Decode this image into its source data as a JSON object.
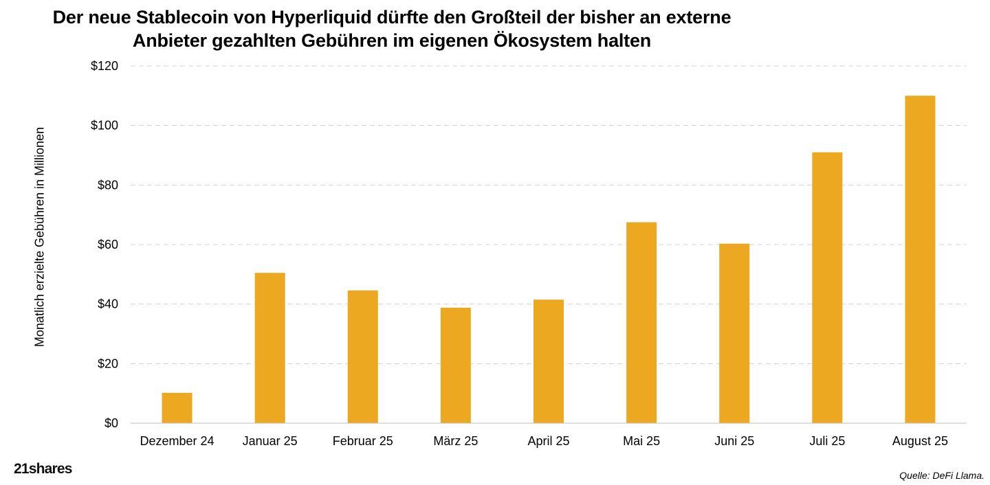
{
  "title": {
    "line1": "Der neue Stablecoin von Hyperliquid dürfte den Großteil der bisher an externe",
    "line2": "Anbieter gezahlten Gebühren im eigenen Ökosystem halten"
  },
  "brand": "21shares",
  "source": "Quelle: DeFi Llama.",
  "colors": {
    "bar": "#EDA821",
    "grid": "#d0d0d0",
    "axis": "#bfbfbf"
  },
  "chart_data": {
    "type": "bar",
    "title": "Der neue Stablecoin von Hyperliquid dürfte den Großteil der bisher an externe Anbieter gezahlten Gebühren im eigenen Ökosystem halten",
    "xlabel": "",
    "ylabel": "Monatlich erzielte Gebühren in Millionen",
    "categories": [
      "Dezember 24",
      "Januar 25",
      "Februar 25",
      "März 25",
      "April 25",
      "Mai 25",
      "Juni 25",
      "Juli 25",
      "August 25"
    ],
    "values": [
      10.2,
      50.5,
      44.6,
      38.8,
      41.5,
      67.5,
      60.3,
      91,
      110
    ],
    "ylim": [
      0,
      120
    ],
    "yticks": [
      0,
      20,
      40,
      60,
      80,
      100,
      120
    ],
    "ytick_labels": [
      "$0",
      "$20",
      "$40",
      "$60",
      "$80",
      "$100",
      "$120"
    ],
    "grid": true
  }
}
